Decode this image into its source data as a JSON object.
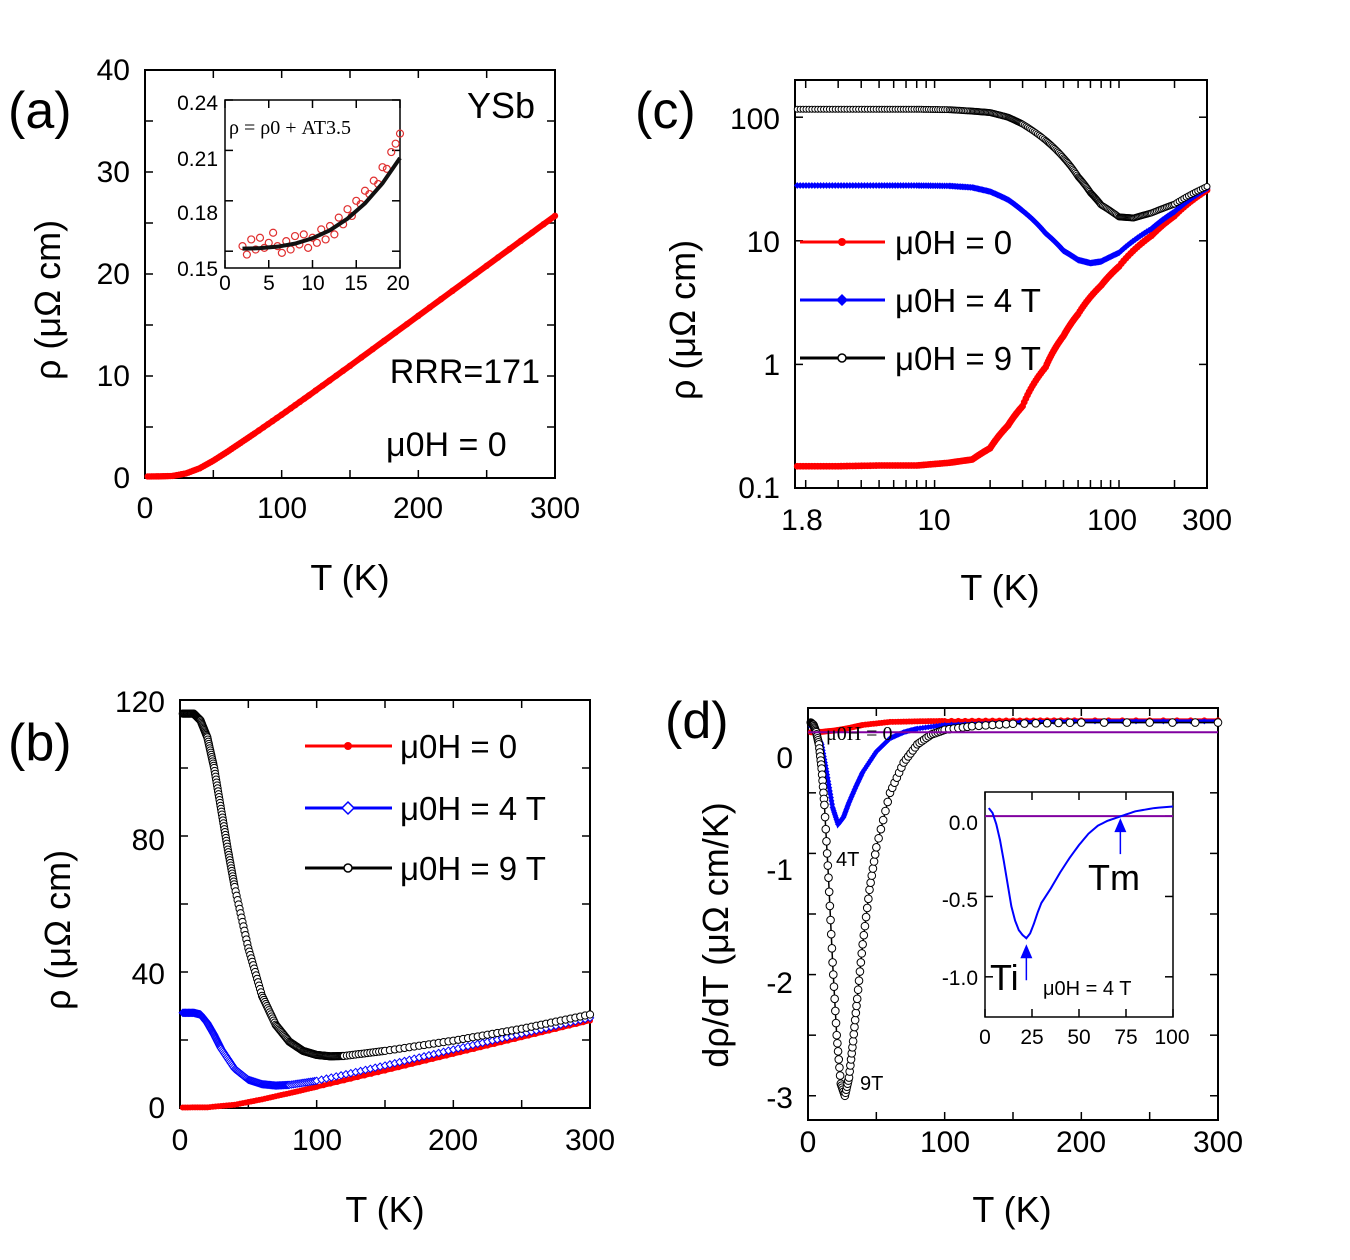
{
  "figure": {
    "colors": {
      "red": "#ff0000",
      "blue": "#0000ff",
      "black": "#000000",
      "zero_line": "#8000a0",
      "inset_open_red": "#e03030"
    }
  },
  "chart_data": [
    {
      "id": "a",
      "type": "line",
      "panel_label": "(a)",
      "title": "",
      "xlabel": "T (K)",
      "ylabel": "ρ (μΩ cm)",
      "xlim": [
        0,
        300
      ],
      "ylim": [
        0,
        40
      ],
      "xticks": [
        "0",
        "100",
        "200",
        "300"
      ],
      "yticks": [
        "0",
        "10",
        "20",
        "30",
        "40"
      ],
      "annotations": {
        "sample": "YSb",
        "rrr": "RRR=171",
        "field": "μ0H = 0"
      },
      "series": [
        {
          "name": "μ0H = 0",
          "color": "#ff0000",
          "x": [
            2,
            10,
            20,
            30,
            40,
            50,
            60,
            70,
            80,
            100,
            120,
            150,
            200,
            250,
            300
          ],
          "y": [
            0.15,
            0.16,
            0.2,
            0.45,
            0.95,
            1.7,
            2.55,
            3.45,
            4.35,
            6.2,
            8.1,
            11.0,
            15.9,
            20.8,
            25.7
          ]
        }
      ],
      "inset": {
        "type": "scatter",
        "formula": "ρ = ρ0 + AT3.5",
        "xlim": [
          0,
          20
        ],
        "ylim": [
          0.14,
          0.24
        ],
        "xticks": [
          "0",
          "5",
          "10",
          "15",
          "20"
        ],
        "yticks": [
          "0.15",
          "0.18",
          "0.21",
          "0.24"
        ],
        "points_x": [
          2,
          2.5,
          3,
          3.5,
          4,
          4.5,
          5,
          5.5,
          6,
          6.5,
          7,
          7.5,
          8,
          8.5,
          9,
          9.5,
          10,
          10.5,
          11,
          11.5,
          12,
          12.5,
          13,
          13.5,
          14,
          14.5,
          15,
          15.5,
          16,
          16.5,
          17,
          17.5,
          18,
          18.5,
          19,
          19.5,
          20
        ],
        "points_y": [
          0.153,
          0.148,
          0.157,
          0.151,
          0.158,
          0.152,
          0.155,
          0.161,
          0.153,
          0.149,
          0.156,
          0.151,
          0.159,
          0.154,
          0.16,
          0.152,
          0.158,
          0.155,
          0.163,
          0.157,
          0.165,
          0.16,
          0.17,
          0.166,
          0.175,
          0.171,
          0.18,
          0.178,
          0.186,
          0.184,
          0.192,
          0.19,
          0.2,
          0.199,
          0.209,
          0.214,
          0.22
        ],
        "fit_x": [
          2,
          4,
          6,
          8,
          10,
          12,
          14,
          16,
          18,
          20
        ],
        "fit_y": [
          0.1515,
          0.1518,
          0.1527,
          0.1545,
          0.1577,
          0.1625,
          0.1694,
          0.1785,
          0.1904,
          0.2055
        ]
      }
    },
    {
      "id": "b",
      "type": "line",
      "panel_label": "(b)",
      "xlabel": "T (K)",
      "ylabel": "ρ (μΩ cm)",
      "xlim": [
        0,
        300
      ],
      "ylim": [
        0,
        120
      ],
      "xticks": [
        "0",
        "100",
        "200",
        "300"
      ],
      "yticks": [
        "0",
        "40",
        "80",
        "120"
      ],
      "series": [
        {
          "name": "μ0H = 0",
          "color": "#ff0000",
          "marker": "filled",
          "x": [
            2,
            20,
            40,
            60,
            80,
            100,
            150,
            200,
            250,
            300
          ],
          "y": [
            0.15,
            0.2,
            0.95,
            2.55,
            4.35,
            6.2,
            11.0,
            15.9,
            20.8,
            25.7
          ]
        },
        {
          "name": "μ0H = 4 T",
          "color": "#0000ff",
          "marker": "open-diamond",
          "x": [
            2,
            10,
            15,
            20,
            25,
            30,
            40,
            50,
            60,
            70,
            80,
            100,
            150,
            200,
            250,
            300
          ],
          "y": [
            28,
            28,
            27.5,
            25,
            21.5,
            17.5,
            11.5,
            8.3,
            7.0,
            6.6,
            6.8,
            8.0,
            12.5,
            17.2,
            21.8,
            26.5
          ]
        },
        {
          "name": "μ0H = 9 T",
          "color": "#000000",
          "marker": "open-circle",
          "x": [
            2,
            10,
            15,
            20,
            25,
            30,
            35,
            40,
            50,
            60,
            70,
            80,
            90,
            100,
            110,
            120,
            150,
            200,
            250,
            300
          ],
          "y": [
            116,
            116,
            114,
            109,
            100,
            88,
            76,
            65,
            47,
            33,
            24.5,
            19.5,
            16.8,
            15.6,
            15.2,
            15.3,
            16.8,
            19.8,
            23.3,
            27.5
          ]
        }
      ]
    },
    {
      "id": "c",
      "type": "line",
      "panel_label": "(c)",
      "xlabel": "T (K)",
      "ylabel": "ρ (μΩ cm)",
      "xscale": "log",
      "yscale": "log",
      "xlim": [
        1.75,
        300
      ],
      "ylim": [
        0.1,
        200
      ],
      "xticks": [
        "1.8",
        "10",
        "100",
        "300"
      ],
      "yticks": [
        "0.1",
        "1",
        "10",
        "100"
      ],
      "series": [
        {
          "name": "μ0H = 0",
          "color": "#ff0000",
          "marker": "filled",
          "x": [
            1.8,
            3,
            5,
            8,
            12,
            16,
            20,
            25,
            30,
            40,
            50,
            60,
            80,
            100,
            150,
            200,
            300
          ],
          "y": [
            0.15,
            0.15,
            0.152,
            0.152,
            0.16,
            0.17,
            0.21,
            0.32,
            0.46,
            0.95,
            1.7,
            2.55,
            4.35,
            6.2,
            11.0,
            15.9,
            25.7
          ]
        },
        {
          "name": "μ0H = 4 T",
          "color": "#0000ff",
          "marker": "filled-diamond",
          "x": [
            1.8,
            3,
            5,
            8,
            12,
            16,
            20,
            25,
            30,
            40,
            50,
            60,
            70,
            80,
            100,
            150,
            200,
            300
          ],
          "y": [
            28,
            28,
            28,
            28,
            27.8,
            27,
            25,
            21.5,
            17.5,
            11.5,
            8.3,
            7.0,
            6.6,
            6.8,
            8.0,
            12.5,
            17.2,
            26.5
          ]
        },
        {
          "name": "μ0H = 9 T",
          "color": "#000000",
          "marker": "open-circle",
          "x": [
            1.8,
            3,
            5,
            8,
            12,
            16,
            20,
            25,
            30,
            40,
            50,
            60,
            70,
            80,
            100,
            120,
            150,
            200,
            300
          ],
          "y": [
            116,
            116,
            116,
            116,
            115,
            112,
            109,
            100,
            88,
            65,
            47,
            33,
            24.5,
            19.5,
            15.6,
            15.3,
            16.8,
            19.8,
            27.5
          ]
        }
      ]
    },
    {
      "id": "d",
      "type": "line",
      "panel_label": "(d)",
      "xlabel": "T (K)",
      "ylabel": "dρ/dT (μΩ cm/K)",
      "xlim": [
        0,
        300
      ],
      "ylim": [
        -3.2,
        0.2
      ],
      "xticks": [
        "0",
        "100",
        "200",
        "300"
      ],
      "yticks": [
        "0",
        "-1",
        "-2",
        "-3"
      ],
      "annotations": {
        "zero_field": "μ0H = 0",
        "label_4T": "4T",
        "label_9T": "9T"
      },
      "series": [
        {
          "name": "μ0H = 0",
          "color": "#ff0000",
          "x": [
            2,
            10,
            20,
            30,
            40,
            60,
            80,
            100,
            150,
            200,
            300
          ],
          "y": [
            0.0,
            0.003,
            0.015,
            0.035,
            0.06,
            0.085,
            0.09,
            0.093,
            0.097,
            0.098,
            0.098
          ]
        },
        {
          "name": "μ0H = 4 T",
          "color": "#0000ff",
          "x": [
            2,
            5,
            10,
            14,
            18,
            22,
            26,
            30,
            35,
            40,
            50,
            60,
            70,
            80,
            100,
            150,
            200,
            300
          ],
          "y": [
            0.05,
            0.02,
            -0.1,
            -0.35,
            -0.62,
            -0.76,
            -0.7,
            -0.58,
            -0.45,
            -0.33,
            -0.16,
            -0.05,
            0.0,
            0.03,
            0.06,
            0.08,
            0.09,
            0.09
          ]
        },
        {
          "name": "μ0H = 9 T",
          "color": "#000000",
          "x": [
            2,
            4,
            6,
            8,
            10,
            12,
            15,
            18,
            21,
            24,
            27,
            30,
            33,
            36,
            40,
            45,
            50,
            60,
            70,
            80,
            90,
            100,
            120,
            150,
            200,
            300
          ],
          "y": [
            0.08,
            0.06,
            0.0,
            -0.1,
            -0.3,
            -0.6,
            -1.2,
            -1.9,
            -2.5,
            -2.9,
            -3.0,
            -2.85,
            -2.55,
            -2.2,
            -1.75,
            -1.3,
            -0.95,
            -0.5,
            -0.25,
            -0.1,
            -0.02,
            0.02,
            0.05,
            0.07,
            0.08,
            0.08
          ]
        },
        {
          "name": "zero line",
          "color": "#8000a0",
          "x": [
            0,
            300
          ],
          "y": [
            0,
            0
          ]
        }
      ],
      "inset": {
        "xlim": [
          0,
          100
        ],
        "ylim": [
          -1.25,
          0.15
        ],
        "xticks": [
          "0",
          "25",
          "50",
          "75",
          "100"
        ],
        "yticks": [
          "0.0",
          "-0.5",
          "-1.0"
        ],
        "field": "μ0H = 4 T",
        "label_Ti": "Ti",
        "label_Tm": "Tm",
        "Ti_value": 22,
        "Tm_value": 72,
        "x": [
          2,
          4,
          6,
          8,
          10,
          12,
          14,
          16,
          18,
          20,
          22,
          24,
          26,
          28,
          30,
          35,
          40,
          45,
          50,
          55,
          60,
          65,
          70,
          75,
          80,
          90,
          100
        ],
        "y": [
          0.05,
          0.02,
          -0.05,
          -0.15,
          -0.28,
          -0.42,
          -0.56,
          -0.65,
          -0.71,
          -0.74,
          -0.76,
          -0.73,
          -0.67,
          -0.6,
          -0.54,
          -0.45,
          -0.35,
          -0.26,
          -0.18,
          -0.11,
          -0.06,
          -0.03,
          -0.01,
          0.01,
          0.03,
          0.05,
          0.06
        ]
      }
    }
  ]
}
